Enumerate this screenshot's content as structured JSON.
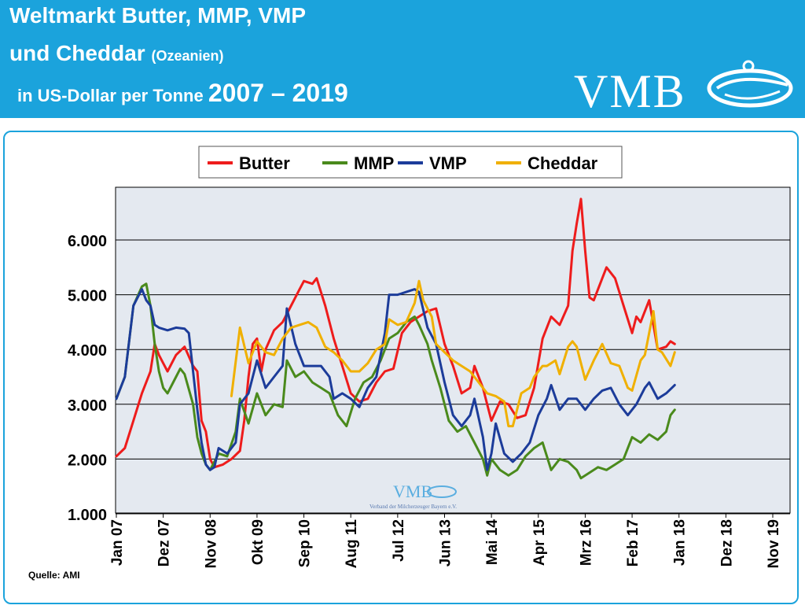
{
  "header": {
    "title_line1": "Weltmarkt Butter, MMP, VMP",
    "title_line2_main": "und Cheddar",
    "title_line2_small": "(Ozeanien)",
    "title_line3_main": "in US-Dollar per Tonne",
    "title_line3_years": "2007 – 2019",
    "logo": "VMB"
  },
  "watermark": {
    "logo": "VMB",
    "subtitle": "Verband der Milcherzeuger Bayern e.V."
  },
  "source": "Quelle: AMI",
  "colors": {
    "header_bg": "#1ba3dc",
    "butter": "#ee1c1c",
    "mmp": "#4a8a1c",
    "vmp": "#1c3c9a",
    "cheddar": "#f0b000",
    "plot_bg": "#e4e9f0"
  },
  "chart_data": {
    "type": "line",
    "title": "Weltmarkt Butter, MMP, VMP und Cheddar (Ozeanien) in US-Dollar per Tonne 2007 – 2019",
    "xlabel": "",
    "ylabel": "",
    "ylim": [
      1000,
      6800
    ],
    "yticks": [
      1000,
      2000,
      3000,
      4000,
      5000,
      6000
    ],
    "ytick_labels": [
      "1.000",
      "2.000",
      "3.000",
      "4.000",
      "5.000",
      "6.000"
    ],
    "xlim": [
      0,
      154
    ],
    "xticks": [
      0,
      11,
      22,
      33,
      44,
      55,
      66,
      77,
      88,
      99,
      110,
      121,
      132,
      143,
      154
    ],
    "xtick_labels": [
      "Jan 07",
      "Dez 07",
      "Nov 08",
      "Okt 09",
      "Sep 10",
      "Aug 11",
      "Jul 12",
      "Jun 13",
      "Mai 14",
      "Apr 15",
      "Mrz 16",
      "Feb 17",
      "Jan 18",
      "Dez 18",
      "Nov 19"
    ],
    "legend_position": "top-center",
    "grid": true,
    "series": [
      {
        "name": "Butter",
        "color": "#ee1c1c",
        "points": [
          [
            0,
            2050
          ],
          [
            2,
            2200
          ],
          [
            4,
            2700
          ],
          [
            6,
            3200
          ],
          [
            8,
            3600
          ],
          [
            9,
            4100
          ],
          [
            10,
            3900
          ],
          [
            11,
            3750
          ],
          [
            12,
            3600
          ],
          [
            14,
            3900
          ],
          [
            16,
            4050
          ],
          [
            18,
            3700
          ],
          [
            19,
            3600
          ],
          [
            20,
            2700
          ],
          [
            21,
            2500
          ],
          [
            22,
            2000
          ],
          [
            23,
            1850
          ],
          [
            25,
            1900
          ],
          [
            27,
            2000
          ],
          [
            29,
            2150
          ],
          [
            30,
            2700
          ],
          [
            31,
            3500
          ],
          [
            32,
            4100
          ],
          [
            33,
            4200
          ],
          [
            34,
            3600
          ],
          [
            35,
            4000
          ],
          [
            37,
            4350
          ],
          [
            39,
            4500
          ],
          [
            41,
            4800
          ],
          [
            43,
            5100
          ],
          [
            44,
            5250
          ],
          [
            46,
            5200
          ],
          [
            47,
            5300
          ],
          [
            49,
            4800
          ],
          [
            51,
            4200
          ],
          [
            53,
            3700
          ],
          [
            55,
            3200
          ],
          [
            57,
            3050
          ],
          [
            59,
            3100
          ],
          [
            61,
            3400
          ],
          [
            63,
            3600
          ],
          [
            65,
            3650
          ],
          [
            67,
            4300
          ],
          [
            69,
            4500
          ],
          [
            71,
            4600
          ],
          [
            73,
            4700
          ],
          [
            75,
            4750
          ],
          [
            77,
            4100
          ],
          [
            79,
            3700
          ],
          [
            81,
            3200
          ],
          [
            83,
            3300
          ],
          [
            84,
            3700
          ],
          [
            86,
            3300
          ],
          [
            88,
            2700
          ],
          [
            90,
            3050
          ],
          [
            92,
            3000
          ],
          [
            94,
            2750
          ],
          [
            96,
            2800
          ],
          [
            98,
            3300
          ],
          [
            100,
            4200
          ],
          [
            102,
            4600
          ],
          [
            104,
            4450
          ],
          [
            106,
            4800
          ],
          [
            107,
            5800
          ],
          [
            108,
            6300
          ],
          [
            109,
            6750
          ],
          [
            110,
            5800
          ],
          [
            111,
            4950
          ],
          [
            112,
            4900
          ],
          [
            114,
            5300
          ],
          [
            115,
            5500
          ],
          [
            117,
            5300
          ],
          [
            119,
            4800
          ],
          [
            121,
            4300
          ],
          [
            122,
            4600
          ],
          [
            123,
            4500
          ],
          [
            125,
            4900
          ],
          [
            127,
            4000
          ],
          [
            129,
            4050
          ],
          [
            130,
            4150
          ],
          [
            131,
            4100
          ]
        ]
      },
      {
        "name": "MMP",
        "color": "#4a8a1c",
        "points": [
          [
            0,
            3100
          ],
          [
            2,
            3500
          ],
          [
            4,
            4800
          ],
          [
            6,
            5150
          ],
          [
            7,
            5200
          ],
          [
            8,
            4800
          ],
          [
            9,
            4100
          ],
          [
            10,
            3600
          ],
          [
            11,
            3300
          ],
          [
            12,
            3200
          ],
          [
            14,
            3500
          ],
          [
            15,
            3650
          ],
          [
            16,
            3550
          ],
          [
            18,
            3000
          ],
          [
            19,
            2400
          ],
          [
            20,
            2100
          ],
          [
            21,
            1900
          ],
          [
            22,
            1800
          ],
          [
            24,
            2100
          ],
          [
            26,
            2050
          ],
          [
            28,
            2500
          ],
          [
            29,
            3100
          ],
          [
            31,
            2650
          ],
          [
            33,
            3200
          ],
          [
            35,
            2800
          ],
          [
            37,
            3000
          ],
          [
            39,
            2950
          ],
          [
            40,
            3800
          ],
          [
            42,
            3500
          ],
          [
            44,
            3600
          ],
          [
            46,
            3400
          ],
          [
            48,
            3300
          ],
          [
            50,
            3200
          ],
          [
            52,
            2800
          ],
          [
            54,
            2600
          ],
          [
            56,
            3100
          ],
          [
            58,
            3400
          ],
          [
            60,
            3500
          ],
          [
            62,
            3800
          ],
          [
            64,
            4200
          ],
          [
            66,
            4300
          ],
          [
            68,
            4500
          ],
          [
            70,
            4600
          ],
          [
            71,
            4450
          ],
          [
            73,
            4100
          ],
          [
            74,
            3800
          ],
          [
            76,
            3300
          ],
          [
            78,
            2700
          ],
          [
            80,
            2500
          ],
          [
            82,
            2600
          ],
          [
            84,
            2300
          ],
          [
            86,
            2000
          ],
          [
            87,
            1700
          ],
          [
            88,
            2000
          ],
          [
            90,
            1800
          ],
          [
            92,
            1700
          ],
          [
            94,
            1800
          ],
          [
            96,
            2050
          ],
          [
            98,
            2200
          ],
          [
            100,
            2300
          ],
          [
            102,
            1800
          ],
          [
            104,
            2000
          ],
          [
            106,
            1950
          ],
          [
            108,
            1800
          ],
          [
            109,
            1650
          ],
          [
            111,
            1750
          ],
          [
            113,
            1850
          ],
          [
            115,
            1800
          ],
          [
            117,
            1900
          ],
          [
            119,
            2000
          ],
          [
            121,
            2400
          ],
          [
            123,
            2300
          ],
          [
            125,
            2450
          ],
          [
            127,
            2350
          ],
          [
            129,
            2500
          ],
          [
            130,
            2800
          ],
          [
            131,
            2900
          ]
        ]
      },
      {
        "name": "VMP",
        "color": "#1c3c9a",
        "points": [
          [
            0,
            3100
          ],
          [
            2,
            3500
          ],
          [
            4,
            4800
          ],
          [
            6,
            5100
          ],
          [
            7,
            4900
          ],
          [
            8,
            4800
          ],
          [
            9,
            4450
          ],
          [
            10,
            4400
          ],
          [
            12,
            4350
          ],
          [
            14,
            4400
          ],
          [
            16,
            4380
          ],
          [
            17,
            4300
          ],
          [
            18,
            3600
          ],
          [
            19,
            2900
          ],
          [
            20,
            2300
          ],
          [
            21,
            1900
          ],
          [
            22,
            1800
          ],
          [
            23,
            1850
          ],
          [
            24,
            2200
          ],
          [
            26,
            2100
          ],
          [
            28,
            2300
          ],
          [
            29,
            3000
          ],
          [
            31,
            3200
          ],
          [
            33,
            3800
          ],
          [
            35,
            3300
          ],
          [
            37,
            3500
          ],
          [
            39,
            3700
          ],
          [
            40,
            4750
          ],
          [
            42,
            4100
          ],
          [
            44,
            3700
          ],
          [
            46,
            3700
          ],
          [
            48,
            3700
          ],
          [
            50,
            3500
          ],
          [
            51,
            3100
          ],
          [
            53,
            3200
          ],
          [
            55,
            3100
          ],
          [
            57,
            2950
          ],
          [
            59,
            3300
          ],
          [
            61,
            3500
          ],
          [
            63,
            4300
          ],
          [
            64,
            5000
          ],
          [
            66,
            5000
          ],
          [
            68,
            5050
          ],
          [
            70,
            5100
          ],
          [
            71,
            5050
          ],
          [
            73,
            4400
          ],
          [
            75,
            4100
          ],
          [
            77,
            3400
          ],
          [
            79,
            2800
          ],
          [
            81,
            2600
          ],
          [
            83,
            2800
          ],
          [
            84,
            3100
          ],
          [
            86,
            2400
          ],
          [
            87,
            1800
          ],
          [
            88,
            2100
          ],
          [
            89,
            2650
          ],
          [
            91,
            2100
          ],
          [
            93,
            1950
          ],
          [
            95,
            2100
          ],
          [
            97,
            2300
          ],
          [
            99,
            2800
          ],
          [
            101,
            3100
          ],
          [
            102,
            3350
          ],
          [
            104,
            2900
          ],
          [
            106,
            3100
          ],
          [
            108,
            3100
          ],
          [
            110,
            2900
          ],
          [
            112,
            3100
          ],
          [
            114,
            3250
          ],
          [
            116,
            3300
          ],
          [
            118,
            3000
          ],
          [
            120,
            2800
          ],
          [
            122,
            3000
          ],
          [
            124,
            3300
          ],
          [
            125,
            3400
          ],
          [
            127,
            3100
          ],
          [
            129,
            3200
          ],
          [
            131,
            3350
          ]
        ]
      },
      {
        "name": "Cheddar",
        "color": "#f0b000",
        "points": [
          [
            27,
            3150
          ],
          [
            29,
            4400
          ],
          [
            31,
            3750
          ],
          [
            33,
            4150
          ],
          [
            35,
            3950
          ],
          [
            37,
            3900
          ],
          [
            39,
            4200
          ],
          [
            41,
            4400
          ],
          [
            43,
            4450
          ],
          [
            45,
            4500
          ],
          [
            47,
            4400
          ],
          [
            49,
            4050
          ],
          [
            51,
            3950
          ],
          [
            53,
            3800
          ],
          [
            55,
            3600
          ],
          [
            57,
            3600
          ],
          [
            59,
            3750
          ],
          [
            61,
            4000
          ],
          [
            63,
            4100
          ],
          [
            64,
            4550
          ],
          [
            66,
            4450
          ],
          [
            68,
            4500
          ],
          [
            70,
            4850
          ],
          [
            71,
            5250
          ],
          [
            72,
            4900
          ],
          [
            74,
            4600
          ],
          [
            75,
            4100
          ],
          [
            77,
            3950
          ],
          [
            79,
            3800
          ],
          [
            81,
            3700
          ],
          [
            83,
            3600
          ],
          [
            85,
            3400
          ],
          [
            87,
            3200
          ],
          [
            89,
            3150
          ],
          [
            91,
            3050
          ],
          [
            92,
            2600
          ],
          [
            93,
            2600
          ],
          [
            95,
            3200
          ],
          [
            97,
            3300
          ],
          [
            98,
            3500
          ],
          [
            100,
            3700
          ],
          [
            101,
            3700
          ],
          [
            103,
            3800
          ],
          [
            104,
            3550
          ],
          [
            106,
            4050
          ],
          [
            107,
            4150
          ],
          [
            108,
            4050
          ],
          [
            110,
            3450
          ],
          [
            112,
            3800
          ],
          [
            114,
            4100
          ],
          [
            116,
            3750
          ],
          [
            118,
            3700
          ],
          [
            120,
            3300
          ],
          [
            121,
            3250
          ],
          [
            123,
            3800
          ],
          [
            124,
            3900
          ],
          [
            126,
            4700
          ],
          [
            127,
            4000
          ],
          [
            128,
            3950
          ],
          [
            130,
            3700
          ],
          [
            131,
            3950
          ]
        ]
      }
    ]
  }
}
